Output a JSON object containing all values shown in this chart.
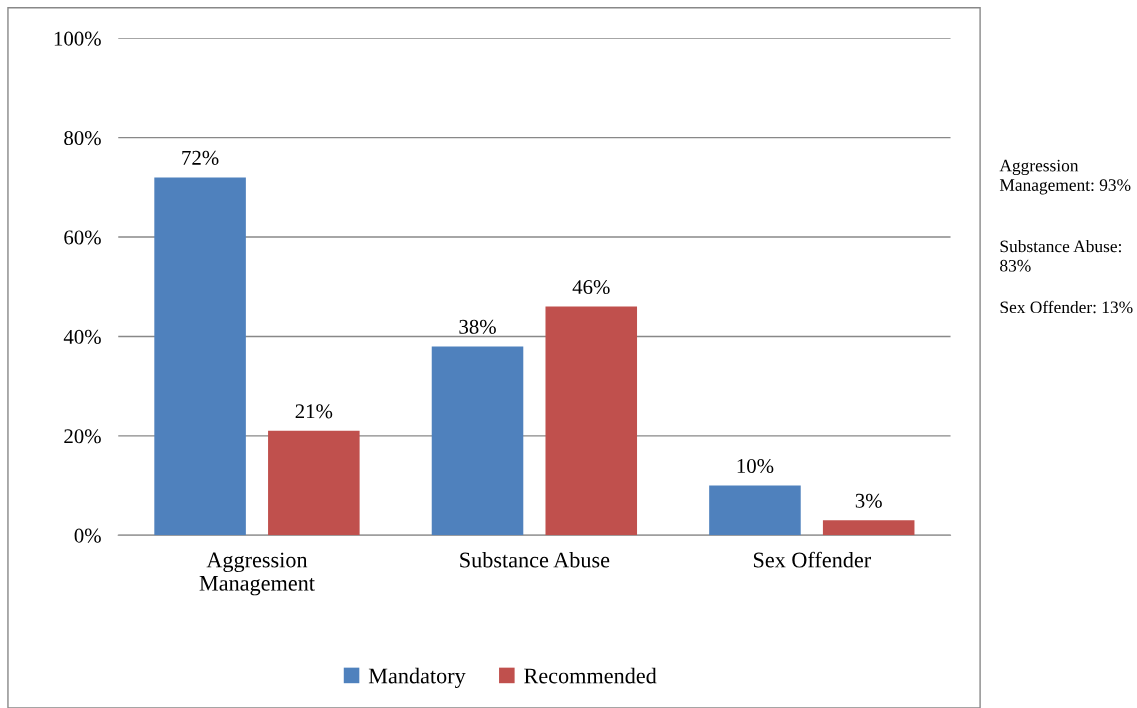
{
  "chart_data": {
    "type": "bar",
    "categories": [
      "Aggression Management",
      "Substance Abuse",
      "Sex Offender"
    ],
    "series": [
      {
        "name": "Mandatory",
        "color": "#4f81bd",
        "values": [
          72,
          38,
          10
        ],
        "value_labels": [
          "72%",
          "38%",
          "10%"
        ]
      },
      {
        "name": "Recommended",
        "color": "#c0504d",
        "values": [
          21,
          46,
          3
        ],
        "value_labels": [
          "21%",
          "46%",
          "3%"
        ]
      }
    ],
    "ylim": [
      0,
      100
    ],
    "yticks": [
      {
        "value": 0,
        "label": "0%"
      },
      {
        "value": 20,
        "label": "20%"
      },
      {
        "value": 40,
        "label": "40%"
      },
      {
        "value": 60,
        "label": "60%"
      },
      {
        "value": 80,
        "label": "80%"
      },
      {
        "value": 100,
        "label": "100%"
      }
    ],
    "grid": "y",
    "legend": "bottom",
    "annotations": [
      "Aggression Management: 93%",
      "Substance Abuse: 83%",
      "Sex Offender: 13%"
    ]
  }
}
